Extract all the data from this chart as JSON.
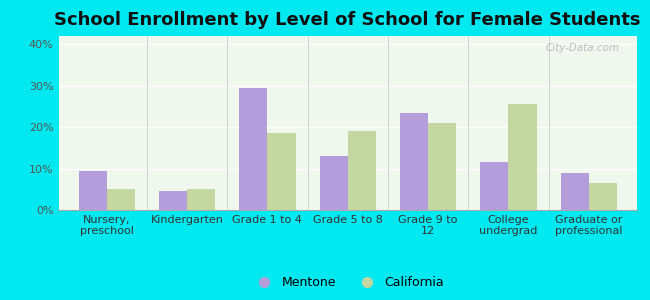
{
  "title": "School Enrollment by Level of School for Female Students",
  "categories": [
    "Nursery,\npreschool",
    "Kindergarten",
    "Grade 1 to 4",
    "Grade 5 to 8",
    "Grade 9 to\n12",
    "College\nundergrad",
    "Graduate or\nprofessional"
  ],
  "mentone": [
    9.5,
    4.5,
    29.5,
    13.0,
    23.5,
    11.5,
    9.0
  ],
  "california": [
    5.0,
    5.0,
    18.5,
    19.0,
    21.0,
    25.5,
    6.5
  ],
  "mentone_color": "#b39ddb",
  "california_color": "#c5d7a0",
  "background_outer": "#00e8f0",
  "ylim": [
    0,
    42
  ],
  "yticks": [
    0,
    10,
    20,
    30,
    40
  ],
  "ytick_labels": [
    "0%",
    "10%",
    "20%",
    "30%",
    "40%"
  ],
  "bar_width": 0.35,
  "legend_labels": [
    "Mentone",
    "California"
  ],
  "watermark": "City-Data.com",
  "title_fontsize": 13,
  "tick_fontsize": 8,
  "legend_fontsize": 9
}
